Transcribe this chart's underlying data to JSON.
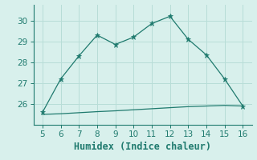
{
  "xlabel": "Humidex (Indice chaleur)",
  "x_main": [
    5,
    6,
    7,
    8,
    9,
    10,
    11,
    12,
    13,
    14,
    15,
    16
  ],
  "y_main": [
    25.6,
    27.2,
    28.3,
    29.3,
    28.85,
    29.2,
    29.85,
    30.2,
    29.1,
    28.35,
    27.2,
    25.9
  ],
  "x_flat": [
    5,
    6,
    7,
    8,
    9,
    10,
    11,
    12,
    13,
    14,
    15,
    16
  ],
  "y_flat": [
    25.5,
    25.53,
    25.58,
    25.63,
    25.67,
    25.72,
    25.77,
    25.82,
    25.87,
    25.9,
    25.93,
    25.9
  ],
  "line_color": "#1f7a6e",
  "bg_color": "#d8f0ec",
  "grid_color": "#b8ddd7",
  "xlim": [
    4.5,
    16.5
  ],
  "ylim": [
    25.0,
    30.75
  ],
  "xticks": [
    5,
    6,
    7,
    8,
    9,
    10,
    11,
    12,
    13,
    14,
    15,
    16
  ],
  "yticks": [
    26,
    27,
    28,
    29,
    30
  ],
  "xlabel_fontsize": 8.5,
  "tick_fontsize": 7.5
}
